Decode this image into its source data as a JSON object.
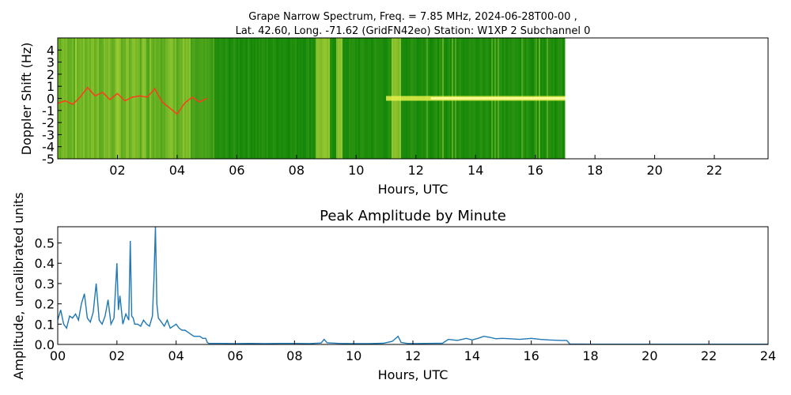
{
  "chart_data": [
    {
      "type": "heatmap",
      "title_line1": "Grape Narrow Spectrum, Freq. = 7.85 MHz, 2024-06-28T00-00 ,",
      "title_line2": "Lat.  42.60, Long. -71.62 (GridFN42eo) Station: W1XP 2 Subchannel 0",
      "xlabel": "Hours, UTC",
      "ylabel": "Doppler Shift (Hz)",
      "xlim": [
        0,
        23.8
      ],
      "ylim": [
        -5,
        5
      ],
      "data_end_hour": 17,
      "x_ticks": [
        "02",
        "04",
        "06",
        "08",
        "10",
        "12",
        "14",
        "16",
        "18",
        "20",
        "22"
      ],
      "y_ticks": [
        "4",
        "3",
        "2",
        "1",
        "0",
        "-1",
        "-2",
        "-3",
        "-4",
        "-5"
      ],
      "colors": {
        "background": "#058005",
        "signal": "#e8f04a",
        "peak_trace": "#ff3b1f"
      },
      "peak_doppler_trace": {
        "x": [
          0.0,
          0.25,
          0.5,
          0.75,
          1.0,
          1.25,
          1.5,
          1.75,
          2.0,
          2.25,
          2.5,
          2.75,
          3.0,
          3.25,
          3.5,
          3.75,
          4.0,
          4.25,
          4.5,
          4.75,
          5.0
        ],
        "y": [
          -0.4,
          -0.2,
          -0.5,
          0.1,
          0.9,
          0.2,
          0.5,
          -0.1,
          0.4,
          -0.2,
          0.1,
          0.2,
          0.1,
          0.8,
          -0.3,
          -0.8,
          -1.3,
          -0.4,
          0.1,
          -0.3,
          0.0
        ]
      }
    },
    {
      "type": "line",
      "title": "Peak Amplitude by Minute",
      "xlabel": "Hours, UTC",
      "ylabel": "Amplitude, uncalibrated units",
      "xlim": [
        0,
        24
      ],
      "ylim": [
        0,
        0.58
      ],
      "x_ticks": [
        "00",
        "02",
        "04",
        "06",
        "08",
        "10",
        "12",
        "14",
        "16",
        "18",
        "20",
        "22",
        "24"
      ],
      "y_ticks": [
        "0.0",
        "0.1",
        "0.2",
        "0.3",
        "0.4",
        "0.5"
      ],
      "color": "#1f77b4",
      "series": [
        {
          "x": [
            0.0,
            0.1,
            0.2,
            0.3,
            0.4,
            0.5,
            0.6,
            0.7,
            0.8,
            0.9,
            1.0,
            1.1,
            1.2,
            1.3,
            1.4,
            1.5,
            1.6,
            1.7,
            1.8,
            1.9,
            2.0,
            2.05,
            2.1,
            2.2,
            2.3,
            2.4,
            2.45,
            2.5,
            2.55,
            2.6,
            2.7,
            2.8,
            2.9,
            3.0,
            3.1,
            3.2,
            3.25,
            3.3,
            3.35,
            3.4,
            3.5,
            3.6,
            3.7,
            3.8,
            3.9,
            4.0,
            4.1,
            4.2,
            4.3,
            4.4,
            4.5,
            4.6,
            4.7,
            4.8,
            4.9,
            5.0,
            5.05,
            5.1,
            5.5,
            6.0,
            6.5,
            7.0,
            7.5,
            8.0,
            8.5,
            8.9,
            9.0,
            9.1,
            9.5,
            10.0,
            10.5,
            11.0,
            11.3,
            11.5,
            11.6,
            11.8,
            12.0,
            12.5,
            13.0,
            13.2,
            13.5,
            13.8,
            14.0,
            14.2,
            14.4,
            14.6,
            14.8,
            15.0,
            15.3,
            15.6,
            16.0,
            16.3,
            16.6,
            17.0,
            17.2,
            17.3,
            18.0,
            20.0,
            22.0,
            24.0
          ],
          "y": [
            0.12,
            0.17,
            0.1,
            0.08,
            0.14,
            0.13,
            0.15,
            0.12,
            0.2,
            0.25,
            0.13,
            0.11,
            0.16,
            0.3,
            0.12,
            0.1,
            0.14,
            0.22,
            0.1,
            0.13,
            0.4,
            0.17,
            0.24,
            0.1,
            0.15,
            0.12,
            0.51,
            0.14,
            0.13,
            0.1,
            0.1,
            0.09,
            0.12,
            0.1,
            0.09,
            0.14,
            0.32,
            0.58,
            0.2,
            0.13,
            0.11,
            0.09,
            0.12,
            0.08,
            0.09,
            0.1,
            0.08,
            0.07,
            0.07,
            0.06,
            0.05,
            0.04,
            0.04,
            0.04,
            0.03,
            0.03,
            0.01,
            0.005,
            0.005,
            0.004,
            0.005,
            0.004,
            0.005,
            0.005,
            0.004,
            0.007,
            0.025,
            0.008,
            0.005,
            0.004,
            0.004,
            0.006,
            0.015,
            0.04,
            0.01,
            0.005,
            0.004,
            0.005,
            0.006,
            0.025,
            0.02,
            0.03,
            0.022,
            0.03,
            0.04,
            0.035,
            0.028,
            0.03,
            0.028,
            0.025,
            0.03,
            0.025,
            0.022,
            0.02,
            0.02,
            0.002,
            0.001,
            0.001,
            0.001,
            0.001
          ]
        }
      ]
    }
  ]
}
